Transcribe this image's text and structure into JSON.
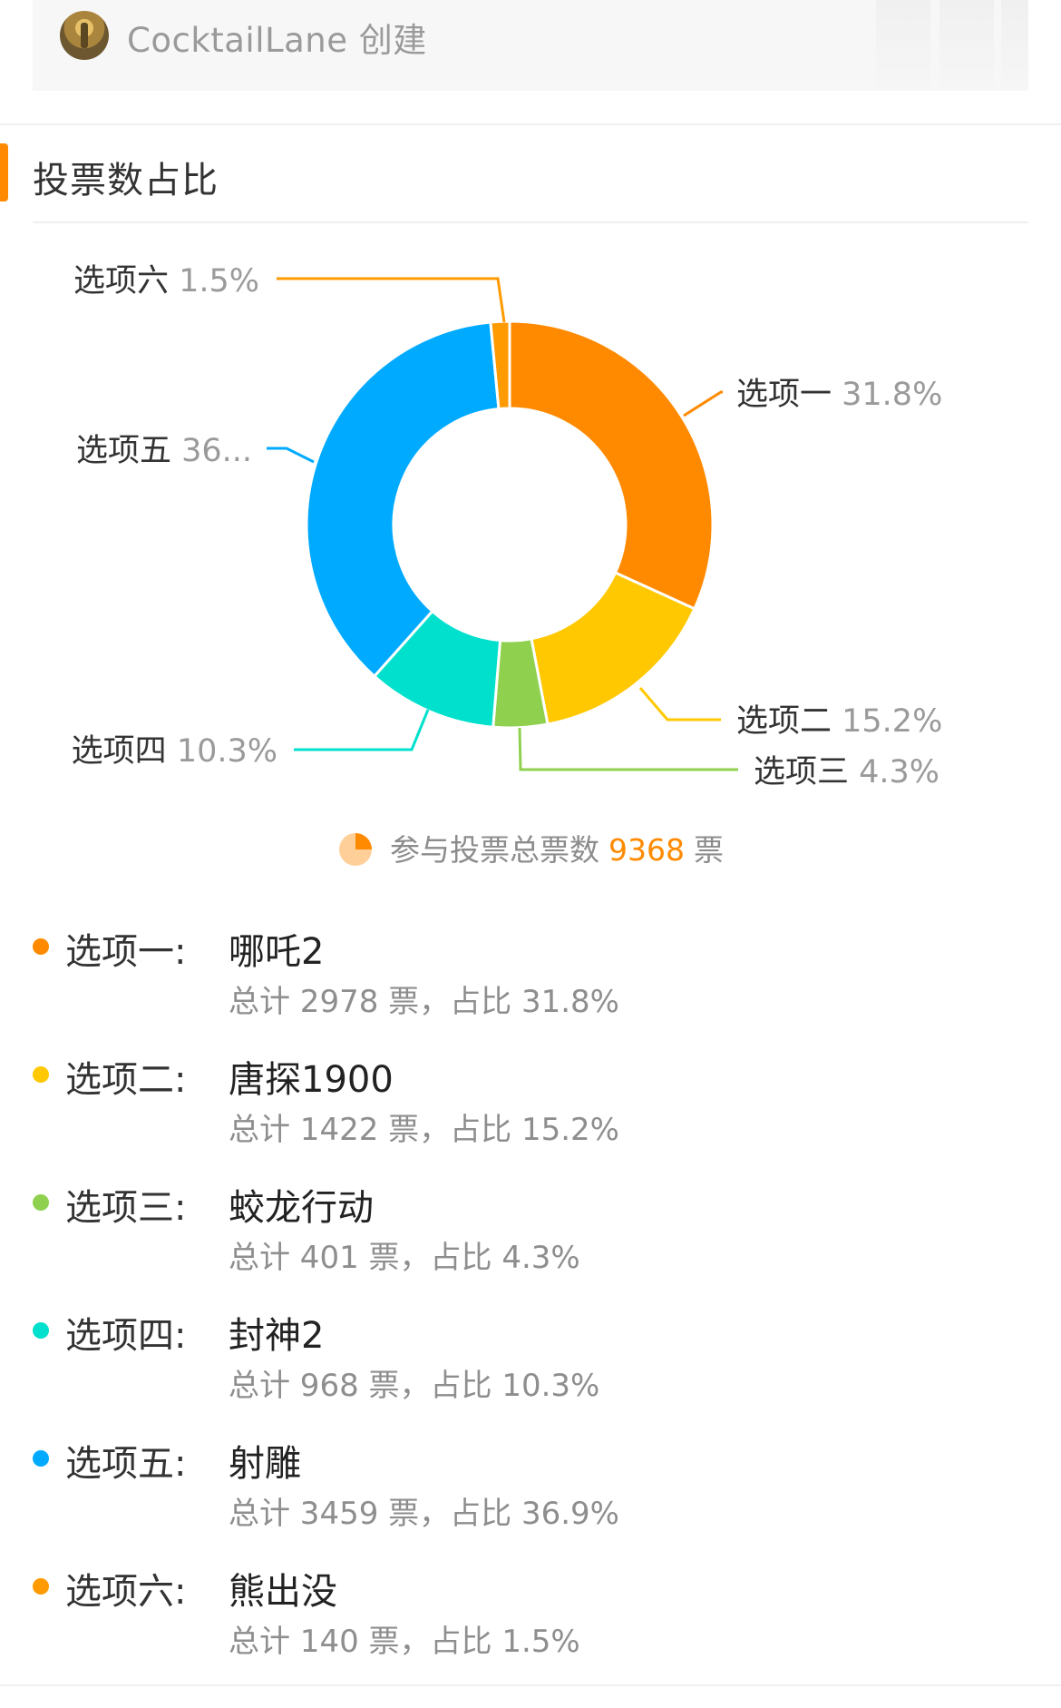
{
  "creator": {
    "text": "CocktailLane 创建"
  },
  "section": {
    "title": "投票数占比"
  },
  "total": {
    "label": "参与投票总票数",
    "count": "9368",
    "unit": "票"
  },
  "chart_data": {
    "type": "pie",
    "categories": [
      "选项一",
      "选项二",
      "选项三",
      "选项四",
      "选项五",
      "选项六"
    ],
    "values": [
      31.8,
      15.2,
      4.3,
      10.3,
      36.9,
      1.5
    ],
    "slice_labels": [
      "31.8%",
      "15.2%",
      "4.3%",
      "10.3%",
      "36...",
      "1.5%"
    ],
    "colors": [
      "#ff8a00",
      "#ffc800",
      "#8fd14f",
      "#00e0cc",
      "#00aaff",
      "#ff9a00"
    ],
    "donut": true
  },
  "options": [
    {
      "label": "选项一:",
      "name": "哪吒2",
      "stats": "总计 2978 票，占比 31.8%",
      "color": "#ff8a00"
    },
    {
      "label": "选项二:",
      "name": "唐探1900",
      "stats": "总计 1422 票，占比 15.2%",
      "color": "#ffc800"
    },
    {
      "label": "选项三:",
      "name": "蛟龙行动",
      "stats": "总计 401 票，占比 4.3%",
      "color": "#8fd14f"
    },
    {
      "label": "选项四:",
      "name": "封神2",
      "stats": "总计 968 票，占比 10.3%",
      "color": "#00e0cc"
    },
    {
      "label": "选项五:",
      "name": "射雕",
      "stats": "总计 3459 票，占比 36.9%",
      "color": "#00aaff"
    },
    {
      "label": "选项六:",
      "name": "熊出没",
      "stats": "总计 140 票，占比 1.5%",
      "color": "#ff9a00"
    }
  ]
}
